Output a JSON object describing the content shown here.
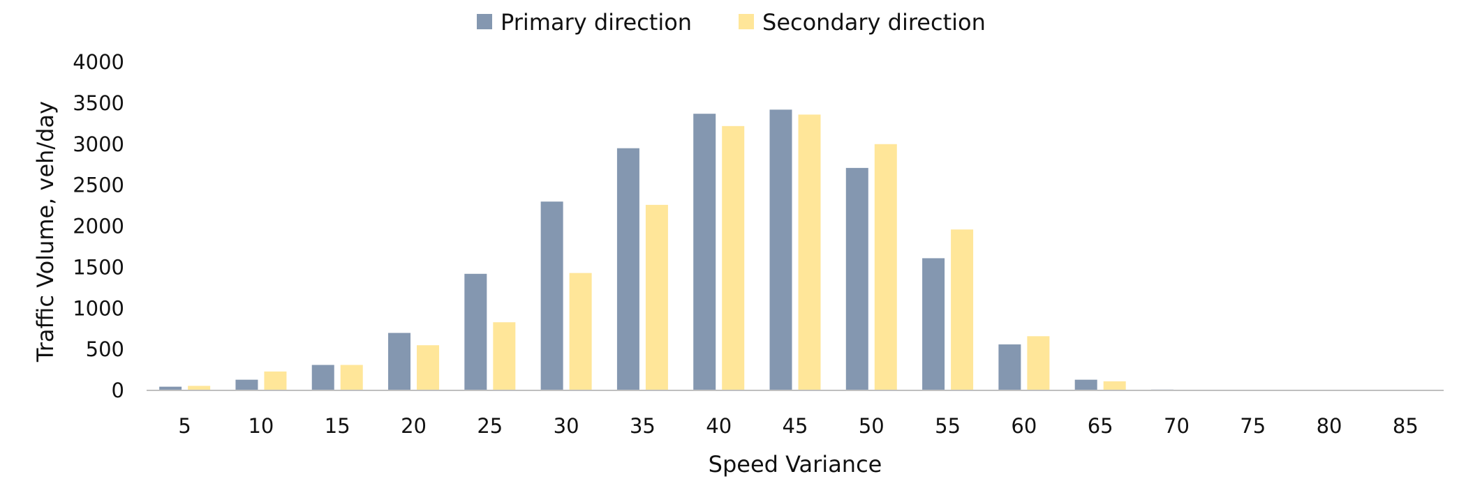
{
  "chart_data": {
    "type": "bar",
    "title": "",
    "xlabel": "Speed Variance",
    "ylabel": "Traffic Volume, veh/day",
    "categories": [
      "5",
      "10",
      "15",
      "20",
      "25",
      "30",
      "35",
      "40",
      "45",
      "50",
      "55",
      "60",
      "65",
      "70",
      "75",
      "80",
      "85"
    ],
    "ylim": [
      0,
      4000
    ],
    "yticks": [
      "0",
      "500",
      "1000",
      "1500",
      "2000",
      "2500",
      "3000",
      "3500",
      "4000"
    ],
    "grid": false,
    "legend_position": "top-center",
    "series": [
      {
        "name": "Primary direction",
        "color": "#8497B0",
        "values": [
          45,
          130,
          310,
          700,
          1420,
          2300,
          2950,
          3370,
          3420,
          2710,
          1610,
          560,
          130,
          10,
          3,
          2,
          1
        ]
      },
      {
        "name": "Secondary direction",
        "color": "#FFE699",
        "values": [
          55,
          230,
          310,
          550,
          830,
          1430,
          2260,
          3220,
          3360,
          3000,
          1960,
          660,
          110,
          8,
          3,
          2,
          1
        ]
      }
    ]
  }
}
